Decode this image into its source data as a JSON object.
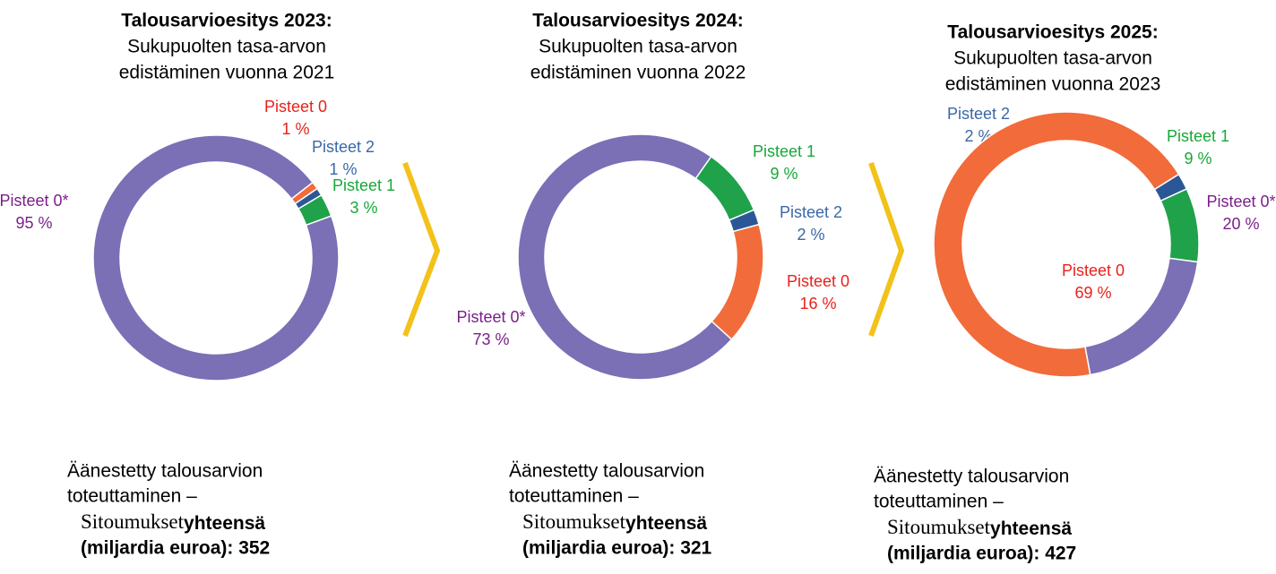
{
  "chart_data": [
    {
      "type": "pie",
      "title": "Talousarvioesitys 2023:",
      "subtitle": [
        "Sukupuolten tasa-arvon",
        "edistäminen vuonna 2021"
      ],
      "categories": [
        "Pisteet 0",
        "Pisteet 2",
        "Pisteet 1",
        "Pisteet 0*"
      ],
      "values": [
        1,
        1,
        3,
        95
      ],
      "value_labels": [
        "1 %",
        "1 %",
        "3 %",
        "95 %"
      ],
      "colors": [
        "#f26b3a",
        "#2b5797",
        "#1fa24a",
        "#7b6fb5"
      ],
      "label_colors": [
        "#e8221b",
        "#3a68a6",
        "#17a838",
        "#7b1f8a"
      ],
      "footer": [
        "Äänestetty talousarvion",
        "toteuttaminen –"
      ],
      "commitments_label": "Sitoumukset",
      "total_label": [
        "yhteensä",
        "(miljardia euroa): 352"
      ]
    },
    {
      "type": "pie",
      "title": "Talousarvioesitys 2024:",
      "subtitle": [
        "Sukupuolten tasa-arvon",
        "edistäminen vuonna 2022"
      ],
      "categories": [
        "Pisteet 1",
        "Pisteet 2",
        "Pisteet 0",
        "Pisteet 0*"
      ],
      "values": [
        9,
        2,
        16,
        73
      ],
      "value_labels": [
        "9 %",
        "2 %",
        "16 %",
        "73 %"
      ],
      "colors": [
        "#1fa24a",
        "#2b5797",
        "#f26b3a",
        "#7b6fb5"
      ],
      "label_colors": [
        "#17a838",
        "#3a68a6",
        "#e8221b",
        "#7b1f8a"
      ],
      "footer": [
        "Äänestetty talousarvion",
        "toteuttaminen –"
      ],
      "commitments_label": "Sitoumukset",
      "total_label": [
        "yhteensä",
        "(miljardia euroa): 321"
      ]
    },
    {
      "type": "pie",
      "title": "Talousarvioesitys 2025:",
      "subtitle": [
        "Sukupuolten tasa-arvon",
        "edistäminen vuonna 2023"
      ],
      "categories": [
        "Pisteet 2",
        "Pisteet 1",
        "Pisteet 0*",
        "Pisteet 0"
      ],
      "values": [
        2,
        9,
        20,
        69
      ],
      "value_labels": [
        "2 %",
        "9 %",
        "20 %",
        "69 %"
      ],
      "colors": [
        "#2b5797",
        "#1fa24a",
        "#7b6fb5",
        "#f26b3a"
      ],
      "label_colors": [
        "#3a68a6",
        "#17a838",
        "#7b1f8a",
        "#e8221b"
      ],
      "footer": [
        "Äänestetty talousarvion",
        "toteuttaminen –"
      ],
      "commitments_label": "Sitoumukset",
      "total_label": [
        "yhteensä",
        "(miljardia euroa): 427"
      ]
    }
  ]
}
